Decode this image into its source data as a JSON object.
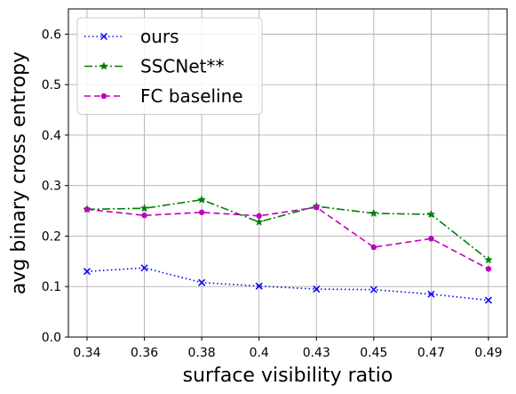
{
  "chart_data": {
    "type": "line",
    "title": "",
    "xlabel": "surface visibility ratio",
    "ylabel": "avg binary cross entropy",
    "categories": [
      "0.34",
      "0.36",
      "0.38",
      "0.4",
      "0.43",
      "0.45",
      "0.47",
      "0.49"
    ],
    "ylim": [
      0.0,
      0.65
    ],
    "yticks": [
      "0.0",
      "0.1",
      "0.2",
      "0.3",
      "0.4",
      "0.5",
      "0.6"
    ],
    "grid": true,
    "legend_position": "top-left",
    "series": [
      {
        "name": "ours",
        "color": "#0000ff",
        "dash": "dotted",
        "marker": "x",
        "values": [
          0.13,
          0.137,
          0.108,
          0.101,
          0.095,
          0.094,
          0.085,
          0.073
        ]
      },
      {
        "name": "SSCNet**",
        "color": "#008000",
        "dash": "dashdot",
        "marker": "star",
        "values": [
          0.253,
          0.255,
          0.272,
          0.228,
          0.259,
          0.245,
          0.243,
          0.153
        ]
      },
      {
        "name": "FC baseline",
        "color": "#bf00bf",
        "dash": "dashed",
        "marker": "circle",
        "values": [
          0.253,
          0.241,
          0.247,
          0.24,
          0.257,
          0.178,
          0.195,
          0.135
        ]
      }
    ]
  }
}
